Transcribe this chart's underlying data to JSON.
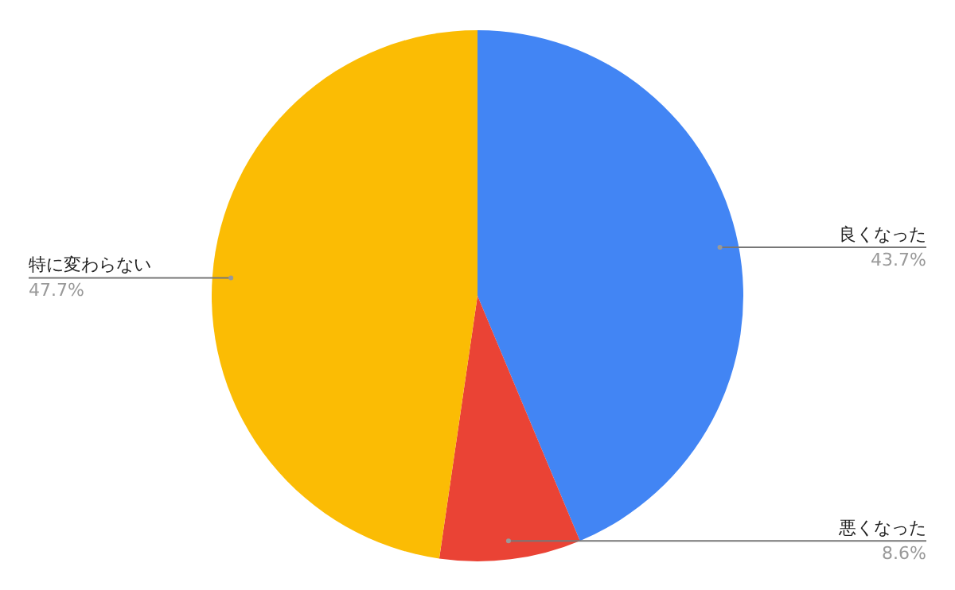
{
  "chart_data": {
    "type": "pie",
    "categories": [
      "良くなった",
      "悪くなった",
      "特に変わらない"
    ],
    "values": [
      43.7,
      8.6,
      47.7
    ],
    "colors": [
      "#4285f4",
      "#ea4335",
      "#fbbc04"
    ],
    "value_labels": [
      "43.7%",
      "8.6%",
      "47.7%"
    ],
    "legend": false
  }
}
